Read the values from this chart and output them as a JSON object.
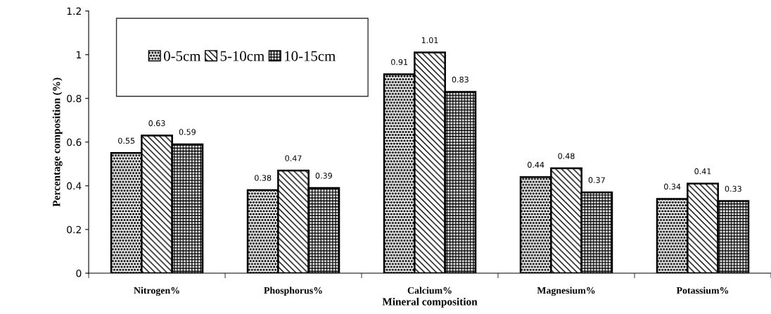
{
  "chart_data": {
    "type": "bar",
    "xlabel": "Mineral composition",
    "ylabel": "Percentage composition (%)",
    "categories": [
      "Nitrogen%",
      "Phosphorus%",
      "Calcium%",
      "Magnesium%",
      "Potassium%"
    ],
    "series": [
      {
        "name": "0-5cm",
        "color": "#000000",
        "values": [
          0.55,
          0.38,
          0.91,
          0.44,
          0.34
        ]
      },
      {
        "name": "5-10cm",
        "color": "#000000",
        "values": [
          0.63,
          0.47,
          1.01,
          0.48,
          0.41
        ]
      },
      {
        "name": "10-15cm",
        "color": "#000000",
        "values": [
          0.59,
          0.39,
          0.83,
          0.37,
          0.33
        ]
      }
    ],
    "ylim": [
      0,
      1.2
    ],
    "yticks": [
      0,
      0.2,
      0.4,
      0.6,
      0.8,
      1,
      1.2
    ],
    "data_labels": true,
    "grid": false,
    "legend": "top left"
  }
}
